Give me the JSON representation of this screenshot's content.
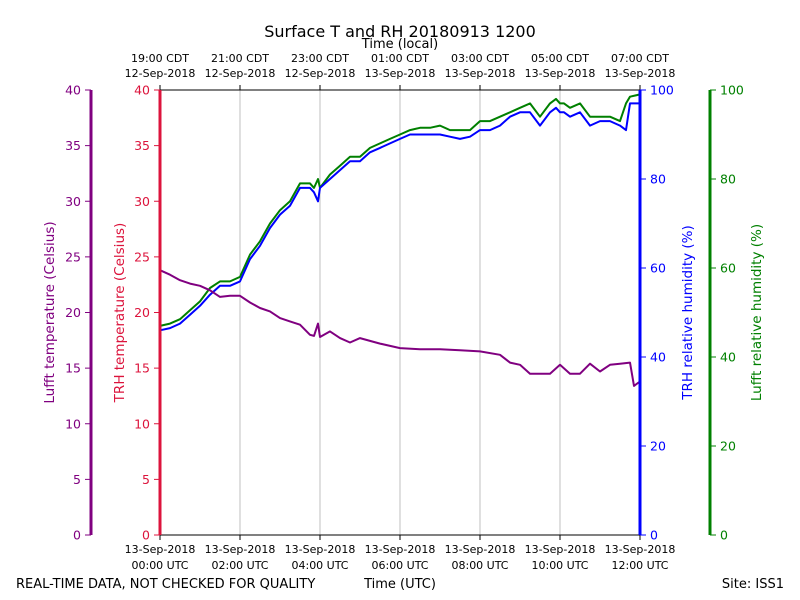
{
  "chart_data": {
    "type": "line",
    "title": "Surface T and RH 20180913 1200",
    "xlabel_bottom": "Time (UTC)",
    "xlabel_top": "Time (local)",
    "footer_left": "REAL-TIME DATA, NOT CHECKED FOR QUALITY",
    "footer_right": "Site: ISS1",
    "x_hours_range": [
      0,
      12
    ],
    "bottom_ticks": [
      {
        "h": 0,
        "line1": "13-Sep-2018",
        "line2": "00:00 UTC"
      },
      {
        "h": 2,
        "line1": "13-Sep-2018",
        "line2": "02:00 UTC"
      },
      {
        "h": 4,
        "line1": "13-Sep-2018",
        "line2": "04:00 UTC"
      },
      {
        "h": 6,
        "line1": "13-Sep-2018",
        "line2": "06:00 UTC"
      },
      {
        "h": 8,
        "line1": "13-Sep-2018",
        "line2": "08:00 UTC"
      },
      {
        "h": 10,
        "line1": "13-Sep-2018",
        "line2": "10:00 UTC"
      },
      {
        "h": 12,
        "line1": "13-Sep-2018",
        "line2": "12:00 UTC"
      }
    ],
    "top_ticks": [
      {
        "h": 0,
        "line1": "19:00 CDT",
        "line2": "12-Sep-2018"
      },
      {
        "h": 2,
        "line1": "21:00 CDT",
        "line2": "12-Sep-2018"
      },
      {
        "h": 4,
        "line1": "23:00 CDT",
        "line2": "12-Sep-2018"
      },
      {
        "h": 6,
        "line1": "01:00 CDT",
        "line2": "13-Sep-2018"
      },
      {
        "h": 8,
        "line1": "03:00 CDT",
        "line2": "13-Sep-2018"
      },
      {
        "h": 10,
        "line1": "05:00 CDT",
        "line2": "13-Sep-2018"
      },
      {
        "h": 12,
        "line1": "07:00 CDT",
        "line2": "13-Sep-2018"
      }
    ],
    "axes": [
      {
        "id": "lufft_t",
        "label": "Lufft temperature (Celsius)",
        "color": "#800080",
        "side": "left",
        "ylim": [
          0,
          40
        ],
        "ticks": [
          "0",
          "5",
          "10",
          "15",
          "20",
          "25",
          "30",
          "35",
          "40"
        ]
      },
      {
        "id": "trh_t",
        "label": "TRH temperature (Celsius)",
        "color": "#dc143c",
        "side": "left",
        "ylim": [
          0,
          40
        ],
        "ticks": [
          "0",
          "5",
          "10",
          "15",
          "20",
          "25",
          "30",
          "35",
          "40"
        ]
      },
      {
        "id": "trh_rh",
        "label": "TRH relative humidity (%)",
        "color": "#0000ff",
        "side": "right",
        "ylim": [
          0,
          100
        ],
        "ticks": [
          "0",
          "20",
          "40",
          "60",
          "80",
          "100"
        ]
      },
      {
        "id": "lufft_rh",
        "label": "Lufft relative humidity (%)",
        "color": "#008000",
        "side": "right",
        "ylim": [
          0,
          100
        ],
        "ticks": [
          "0",
          "20",
          "40",
          "60",
          "80",
          "100"
        ]
      }
    ],
    "grid": "vertical",
    "series": [
      {
        "axis": "lufft_rh",
        "color": "#008000",
        "x": [
          0,
          0.25,
          0.5,
          0.75,
          1.0,
          1.25,
          1.5,
          1.75,
          2.0,
          2.25,
          2.5,
          2.75,
          3.0,
          3.25,
          3.5,
          3.75,
          3.85,
          3.95,
          4.0,
          4.25,
          4.5,
          4.75,
          5.0,
          5.25,
          5.5,
          5.75,
          6.0,
          6.25,
          6.5,
          6.75,
          7.0,
          7.25,
          7.5,
          7.75,
          8.0,
          8.25,
          8.5,
          8.75,
          9.0,
          9.25,
          9.5,
          9.75,
          9.9,
          10.0,
          10.1,
          10.25,
          10.5,
          10.75,
          11.0,
          11.25,
          11.5,
          11.65,
          11.75,
          12.0
        ],
        "y": [
          47,
          47.5,
          48.5,
          50.5,
          52.5,
          55.5,
          57,
          57,
          58,
          63,
          66,
          70,
          73,
          75,
          79,
          79,
          78,
          80,
          78,
          81,
          83,
          85,
          85,
          87,
          88,
          89,
          90,
          91,
          91.5,
          91.5,
          92,
          91,
          91,
          91,
          93,
          93,
          94,
          95,
          96,
          97,
          94,
          97,
          98,
          97,
          97,
          96,
          97,
          94,
          94,
          94,
          93,
          97,
          98.5,
          99
        ]
      },
      {
        "axis": "trh_rh",
        "color": "#0000ff",
        "x": [
          0,
          0.25,
          0.5,
          0.75,
          1.0,
          1.25,
          1.5,
          1.75,
          2.0,
          2.25,
          2.5,
          2.75,
          3.0,
          3.25,
          3.5,
          3.75,
          3.85,
          3.95,
          4.0,
          4.25,
          4.5,
          4.75,
          5.0,
          5.25,
          5.5,
          5.75,
          6.0,
          6.25,
          6.5,
          6.75,
          7.0,
          7.25,
          7.5,
          7.75,
          8.0,
          8.25,
          8.5,
          8.75,
          9.0,
          9.25,
          9.5,
          9.75,
          9.9,
          10.0,
          10.1,
          10.25,
          10.5,
          10.75,
          11.0,
          11.25,
          11.5,
          11.65,
          11.75,
          12.0
        ],
        "y": [
          46,
          46.5,
          47.5,
          49.5,
          51.5,
          54,
          56,
          56,
          57,
          62,
          65,
          69,
          72,
          74,
          78,
          78,
          77,
          75,
          78,
          80,
          82,
          84,
          84,
          86,
          87,
          88,
          89,
          90,
          90,
          90,
          90,
          89.5,
          89,
          89.5,
          91,
          91,
          92,
          94,
          95,
          95,
          92,
          95,
          96,
          95,
          95,
          94,
          95,
          92,
          93,
          93,
          92,
          91,
          97,
          97
        ]
      },
      {
        "axis": "lufft_t",
        "color": "#800080",
        "x": [
          0,
          0.25,
          0.5,
          0.75,
          1.0,
          1.25,
          1.5,
          1.75,
          2.0,
          2.25,
          2.5,
          2.75,
          3.0,
          3.25,
          3.5,
          3.75,
          3.85,
          3.95,
          4.0,
          4.25,
          4.5,
          4.75,
          5.0,
          5.5,
          6.0,
          6.5,
          7.0,
          7.5,
          8.0,
          8.5,
          8.75,
          9.0,
          9.25,
          9.5,
          9.75,
          10.0,
          10.25,
          10.5,
          10.75,
          11.0,
          11.25,
          11.5,
          11.75,
          11.85,
          12.0
        ],
        "y": [
          23.8,
          23.4,
          22.9,
          22.6,
          22.4,
          22,
          21.4,
          21.5,
          21.5,
          20.9,
          20.4,
          20.1,
          19.5,
          19.2,
          18.9,
          18,
          17.9,
          19,
          17.8,
          18.3,
          17.7,
          17.3,
          17.7,
          17.2,
          16.8,
          16.7,
          16.7,
          16.6,
          16.5,
          16.2,
          15.5,
          15.3,
          14.5,
          14.5,
          14.5,
          15.3,
          14.5,
          14.5,
          15.4,
          14.7,
          15.3,
          15.4,
          15.5,
          13.4,
          13.8
        ]
      }
    ]
  }
}
